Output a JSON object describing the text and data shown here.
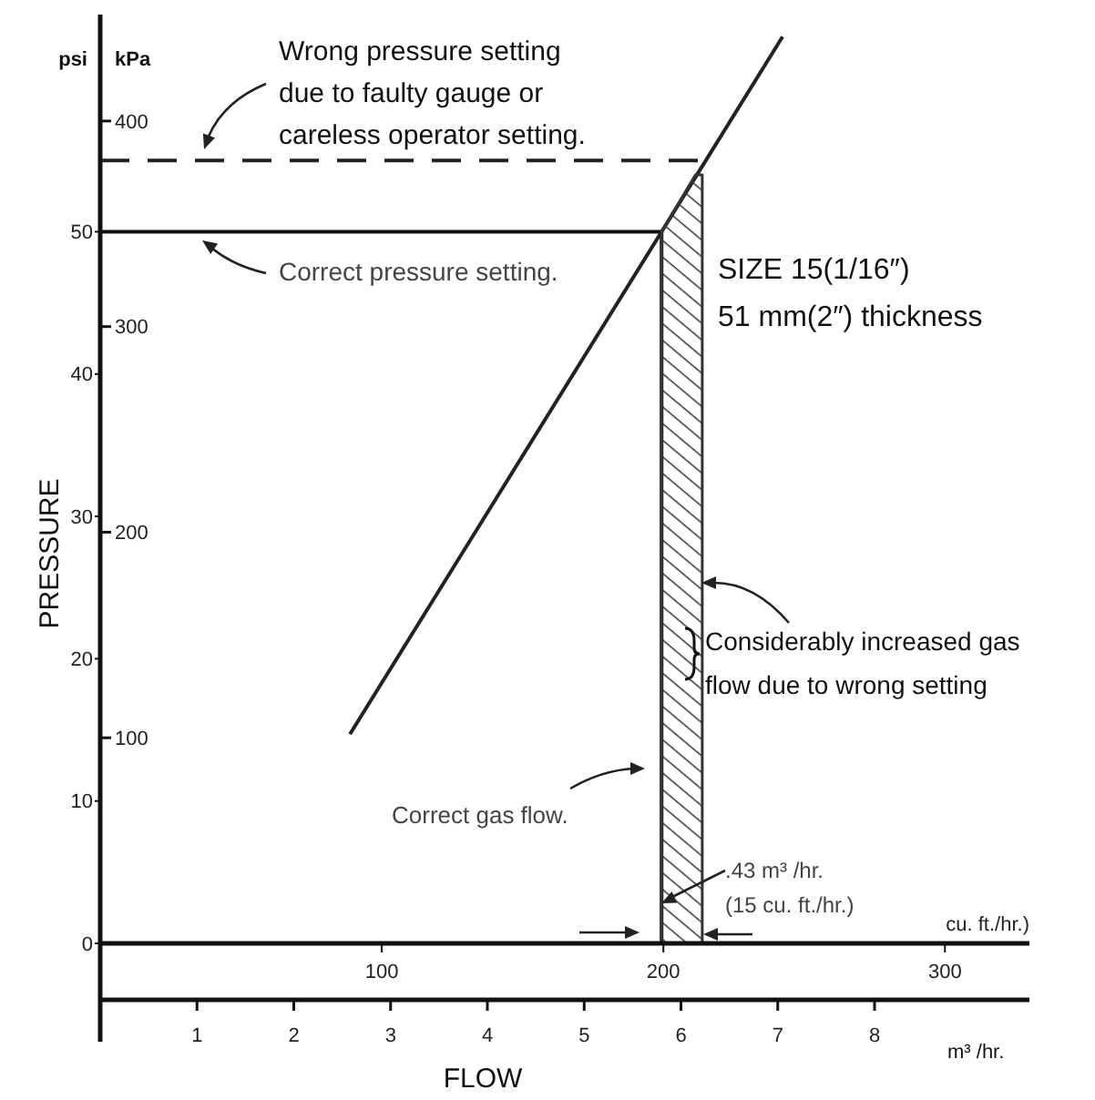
{
  "chart_data": {
    "type": "line",
    "xlabel": "FLOW",
    "ylabel": "PRESSURE",
    "y2label": "kPa",
    "x2label": "cu. ft./hr.)",
    "xlim": [
      0,
      9.6
    ],
    "xticks": [
      1,
      2,
      3,
      4,
      5,
      6,
      7,
      8
    ],
    "x2lim": [
      0,
      330
    ],
    "x2ticks": [
      100,
      200,
      300
    ],
    "ylim": [
      0,
      65
    ],
    "yticks": [
      0,
      10,
      20,
      30,
      40,
      50
    ],
    "y2lim": [
      0,
      450
    ],
    "y2ticks": [
      100,
      200,
      300,
      400
    ],
    "grid": false,
    "marker": "none",
    "series": [
      {
        "color": "#222222",
        "x": [
          2.58,
          7.05
        ],
        "values": [
          14.7,
          63.7
        ]
      },
      {
        "color": "#111111",
        "x": [
          0,
          5.8,
          5.8
        ],
        "values": [
          50,
          50,
          0
        ]
      },
      {
        "color": "#222222",
        "line_style": "dashed",
        "x": [
          0,
          6.25
        ],
        "values": [
          55,
          55
        ]
      },
      {
        "type": "area",
        "color": "#333333",
        "x": [
          5.8,
          6.15,
          6.22
        ],
        "values": [
          50,
          54,
          54
        ]
      }
    ],
    "annotations": [
      "Wrong pressure setting\ndue to faulty gauge or\ncareless operator setting.",
      "Correct pressure setting.",
      "SIZE 15(1/16″)\n51 mm(2″) thickness",
      "Considerably increased gas\nflow due to wrong setting",
      "Correct gas flow.",
      ".43 m³ /hr.\n(15 cu. ft./hr.)",
      "psi",
      "m³ /hr."
    ]
  }
}
